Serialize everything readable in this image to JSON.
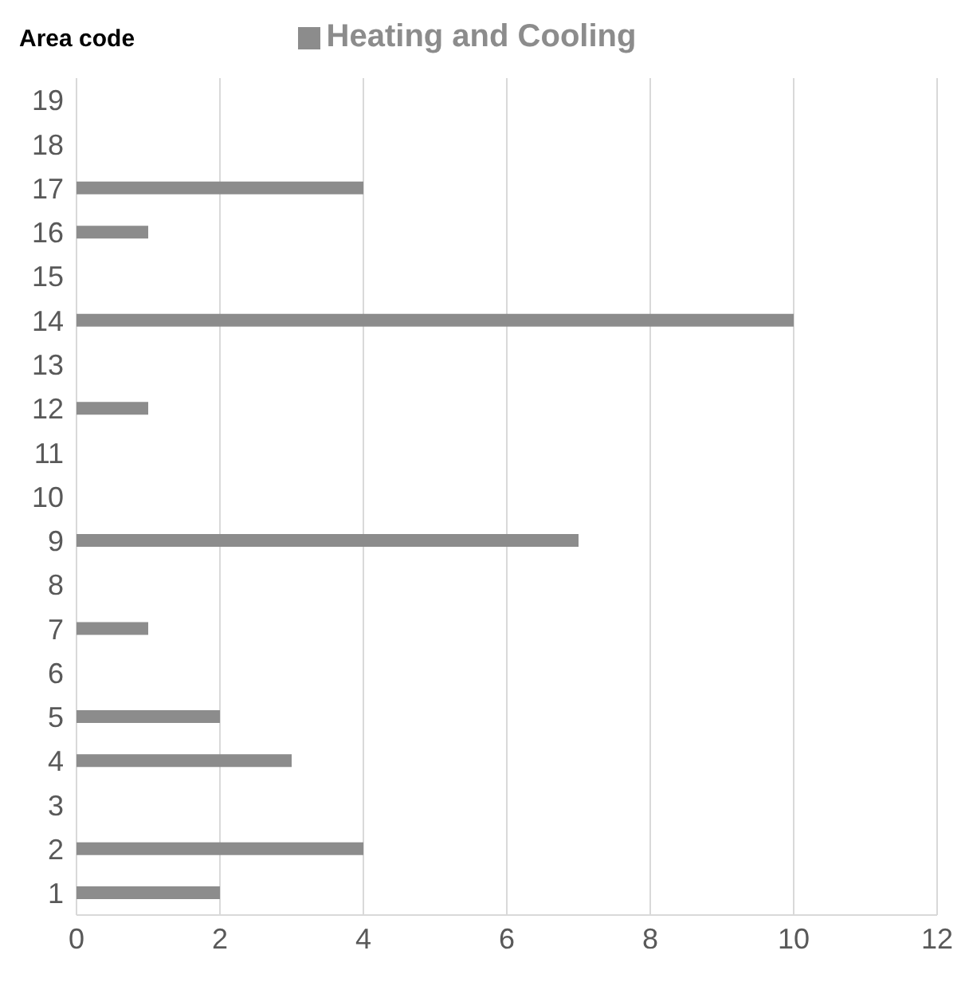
{
  "chart_data": {
    "type": "bar",
    "orientation": "horizontal",
    "ylabel": "Area code",
    "categories": [
      "19",
      "18",
      "17",
      "16",
      "15",
      "14",
      "13",
      "12",
      "11",
      "10",
      "9",
      "8",
      "7",
      "6",
      "5",
      "4",
      "3",
      "2",
      "1"
    ],
    "series": [
      {
        "name": "Heating and Cooling",
        "color": "#8c8c8c",
        "values": [
          null,
          null,
          4,
          1,
          null,
          10,
          null,
          1,
          null,
          null,
          7,
          null,
          1,
          null,
          2,
          3,
          null,
          4,
          2
        ]
      }
    ],
    "xlim": [
      0,
      12
    ],
    "xticks": [
      0,
      2,
      4,
      6,
      8,
      10,
      12
    ],
    "grid": "x",
    "legend": "top"
  }
}
